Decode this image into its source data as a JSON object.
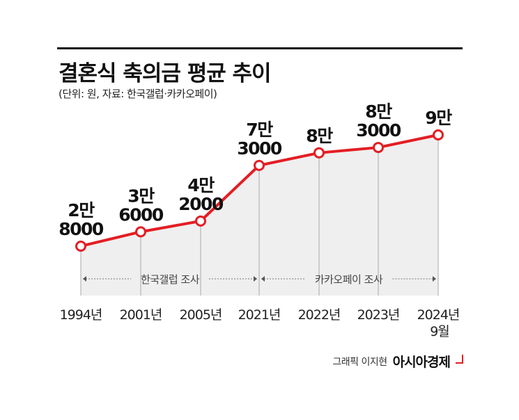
{
  "title": "결혼식 축의금 평균 추이",
  "subtitle": "(단위: 원, 자료: 한국갤럽·카카오페이)",
  "credit": {
    "text": "그래픽 이지현",
    "brand": "아시아경제"
  },
  "colors": {
    "line": "#e31e24",
    "area": "#efefef",
    "guide": "#aaaaaa"
  },
  "chart_data": {
    "type": "line",
    "categories": [
      "1994년",
      "2001년",
      "2005년",
      "2021년",
      "2022년",
      "2023년",
      "2024년"
    ],
    "category_sublabels": [
      "",
      "",
      "",
      "",
      "",
      "",
      "9월"
    ],
    "values": [
      28000,
      36000,
      42000,
      73000,
      80000,
      83000,
      90000
    ],
    "value_labels": [
      [
        "2만",
        "8000"
      ],
      [
        "3만",
        "6000"
      ],
      [
        "4만",
        "2000"
      ],
      [
        "7만",
        "3000"
      ],
      [
        "8만",
        ""
      ],
      [
        "8만",
        "3000"
      ],
      [
        "9만",
        ""
      ]
    ],
    "sources": [
      {
        "label": "한국갤럽 조사",
        "from": 0,
        "to": 3
      },
      {
        "label": "카카오페이 조사",
        "from": 3,
        "to": 6
      }
    ]
  }
}
